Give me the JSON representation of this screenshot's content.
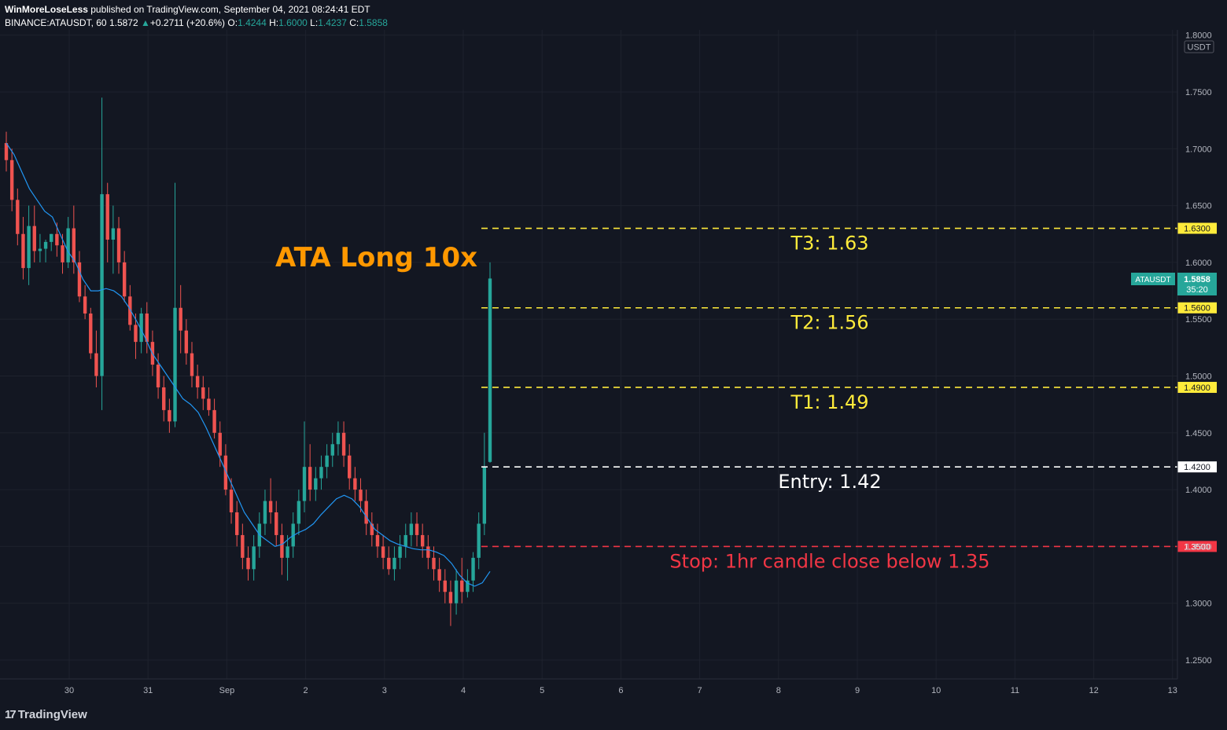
{
  "header": {
    "author": "WinMoreLoseLess",
    "published": " published on TradingView.com, September 04, 2021 08:24:41 EDT",
    "symbol": "BINANCE:ATAUSDT, 60",
    "last": "1.5872",
    "change": "+0.2711 (+20.6%)",
    "o_label": "O:",
    "o": "1.4244",
    "h_label": "H:",
    "h": "1.6000",
    "l_label": "L:",
    "l": "1.4237",
    "c_label": "C:",
    "c": "1.5858"
  },
  "footer": {
    "logo_text": "TradingView"
  },
  "colors": {
    "background": "#131722",
    "up": "#26a69a",
    "down": "#ef5350",
    "ma": "#2196f3",
    "target": "#ffeb3b",
    "entry": "#ffffff",
    "stop": "#f23645",
    "title": "#ff9800"
  },
  "chart_data": {
    "type": "candlestick",
    "title": "ATA Long 10x",
    "currency_label": "USDT",
    "y_ticks": [
      "1.2500",
      "1.3000",
      "1.3500",
      "1.4000",
      "1.4500",
      "1.5000",
      "1.5500",
      "1.6000",
      "1.6500",
      "1.7000",
      "1.7500",
      "1.8000"
    ],
    "x_ticks": [
      "30",
      "31",
      "Sep",
      "2",
      "3",
      "4",
      "5",
      "6",
      "7",
      "8",
      "9",
      "10",
      "11",
      "12",
      "13"
    ],
    "ylim": [
      1.235,
      1.805
    ],
    "price_badge": {
      "label": "ATAUSDT",
      "price": "1.5858",
      "countdown": "35:20"
    },
    "levels": [
      {
        "name": "T3",
        "price": 1.63,
        "price_label": "1.6300",
        "text": "T3: 1.63",
        "color": "#ffeb3b"
      },
      {
        "name": "T2",
        "price": 1.56,
        "price_label": "1.5600",
        "text": "T2: 1.56",
        "color": "#ffeb3b"
      },
      {
        "name": "T1",
        "price": 1.49,
        "price_label": "1.4900",
        "text": "T1: 1.49",
        "color": "#ffeb3b"
      },
      {
        "name": "Entry",
        "price": 1.42,
        "price_label": "1.4200",
        "text": "Entry: 1.42",
        "color": "#ffffff"
      },
      {
        "name": "Stop",
        "price": 1.35,
        "price_label": "1.3500",
        "text": "Stop: 1hr candle close below 1.35",
        "color": "#f23645"
      }
    ],
    "ma_series": [
      1.705,
      1.695,
      1.68,
      1.665,
      1.655,
      1.645,
      1.64,
      1.625,
      1.61,
      1.6,
      1.585,
      1.575,
      1.575,
      1.577,
      1.575,
      1.57,
      1.56,
      1.548,
      1.535,
      1.52,
      1.51,
      1.5,
      1.49,
      1.48,
      1.475,
      1.468,
      1.455,
      1.44,
      1.425,
      1.41,
      1.395,
      1.38,
      1.37,
      1.36,
      1.355,
      1.35,
      1.352,
      1.358,
      1.362,
      1.365,
      1.37,
      1.378,
      1.385,
      1.392,
      1.395,
      1.392,
      1.385,
      1.375,
      1.365,
      1.36,
      1.355,
      1.352,
      1.35,
      1.348,
      1.347,
      1.347,
      1.345,
      1.342,
      1.335,
      1.325,
      1.318,
      1.315,
      1.318,
      1.328
    ],
    "candles": [
      [
        1.705,
        1.715,
        1.69,
        1.68
      ],
      [
        1.69,
        1.7,
        1.655,
        1.645
      ],
      [
        1.655,
        1.665,
        1.625,
        1.615
      ],
      [
        1.625,
        1.64,
        1.595,
        1.585
      ],
      [
        1.595,
        1.65,
        1.632,
        1.58
      ],
      [
        1.632,
        1.65,
        1.61,
        1.6
      ],
      [
        1.61,
        1.625,
        1.612,
        1.6
      ],
      [
        1.612,
        1.62,
        1.618,
        1.6
      ],
      [
        1.618,
        1.625,
        1.625,
        1.61
      ],
      [
        1.625,
        1.635,
        1.615,
        1.605
      ],
      [
        1.615,
        1.625,
        1.6,
        1.59
      ],
      [
        1.6,
        1.64,
        1.63,
        1.595
      ],
      [
        1.63,
        1.65,
        1.6,
        1.59
      ],
      [
        1.6,
        1.61,
        1.57,
        1.565
      ],
      [
        1.57,
        1.58,
        1.555,
        1.55
      ],
      [
        1.555,
        1.56,
        1.52,
        1.515
      ],
      [
        1.52,
        1.54,
        1.5,
        1.49
      ],
      [
        1.5,
        1.745,
        1.66,
        1.47
      ],
      [
        1.66,
        1.67,
        1.62,
        1.6
      ],
      [
        1.62,
        1.65,
        1.63,
        1.59
      ],
      [
        1.63,
        1.64,
        1.6,
        1.59
      ],
      [
        1.6,
        1.61,
        1.57,
        1.565
      ],
      [
        1.57,
        1.58,
        1.545,
        1.54
      ],
      [
        1.545,
        1.555,
        1.53,
        1.515
      ],
      [
        1.53,
        1.56,
        1.555,
        1.52
      ],
      [
        1.555,
        1.565,
        1.53,
        1.52
      ],
      [
        1.53,
        1.54,
        1.51,
        1.5
      ],
      [
        1.51,
        1.52,
        1.49,
        1.48
      ],
      [
        1.49,
        1.5,
        1.47,
        1.46
      ],
      [
        1.47,
        1.48,
        1.46,
        1.45
      ],
      [
        1.46,
        1.67,
        1.56,
        1.455
      ],
      [
        1.56,
        1.58,
        1.54,
        1.52
      ],
      [
        1.54,
        1.55,
        1.52,
        1.51
      ],
      [
        1.52,
        1.53,
        1.5,
        1.49
      ],
      [
        1.5,
        1.51,
        1.49,
        1.48
      ],
      [
        1.49,
        1.5,
        1.48,
        1.47
      ],
      [
        1.48,
        1.49,
        1.47,
        1.465
      ],
      [
        1.47,
        1.48,
        1.45,
        1.445
      ],
      [
        1.45,
        1.46,
        1.43,
        1.42
      ],
      [
        1.43,
        1.44,
        1.4,
        1.395
      ],
      [
        1.4,
        1.41,
        1.38,
        1.37
      ],
      [
        1.38,
        1.39,
        1.36,
        1.35
      ],
      [
        1.36,
        1.37,
        1.34,
        1.33
      ],
      [
        1.34,
        1.35,
        1.33,
        1.32
      ],
      [
        1.33,
        1.36,
        1.35,
        1.32
      ],
      [
        1.35,
        1.38,
        1.37,
        1.34
      ],
      [
        1.37,
        1.4,
        1.39,
        1.36
      ],
      [
        1.39,
        1.41,
        1.38,
        1.37
      ],
      [
        1.38,
        1.39,
        1.36,
        1.35
      ],
      [
        1.36,
        1.37,
        1.34,
        1.325
      ],
      [
        1.34,
        1.36,
        1.35,
        1.32
      ],
      [
        1.35,
        1.38,
        1.37,
        1.34
      ],
      [
        1.37,
        1.4,
        1.39,
        1.36
      ],
      [
        1.39,
        1.46,
        1.42,
        1.38
      ],
      [
        1.42,
        1.44,
        1.4,
        1.39
      ],
      [
        1.4,
        1.42,
        1.41,
        1.39
      ],
      [
        1.41,
        1.43,
        1.42,
        1.4
      ],
      [
        1.42,
        1.44,
        1.43,
        1.41
      ],
      [
        1.43,
        1.45,
        1.44,
        1.42
      ],
      [
        1.44,
        1.46,
        1.45,
        1.43
      ],
      [
        1.45,
        1.46,
        1.43,
        1.42
      ],
      [
        1.43,
        1.44,
        1.41,
        1.4
      ],
      [
        1.41,
        1.42,
        1.4,
        1.39
      ],
      [
        1.4,
        1.41,
        1.39,
        1.38
      ],
      [
        1.39,
        1.4,
        1.37,
        1.36
      ],
      [
        1.37,
        1.38,
        1.36,
        1.35
      ],
      [
        1.36,
        1.37,
        1.35,
        1.34
      ],
      [
        1.35,
        1.36,
        1.34,
        1.33
      ],
      [
        1.34,
        1.35,
        1.33,
        1.325
      ],
      [
        1.33,
        1.35,
        1.34,
        1.32
      ],
      [
        1.34,
        1.36,
        1.35,
        1.33
      ],
      [
        1.35,
        1.37,
        1.36,
        1.34
      ],
      [
        1.36,
        1.38,
        1.37,
        1.35
      ],
      [
        1.37,
        1.38,
        1.36,
        1.35
      ],
      [
        1.36,
        1.37,
        1.35,
        1.34
      ],
      [
        1.35,
        1.36,
        1.34,
        1.33
      ],
      [
        1.34,
        1.35,
        1.33,
        1.32
      ],
      [
        1.33,
        1.34,
        1.32,
        1.31
      ],
      [
        1.32,
        1.33,
        1.31,
        1.3
      ],
      [
        1.31,
        1.32,
        1.3,
        1.28
      ],
      [
        1.3,
        1.33,
        1.32,
        1.29
      ],
      [
        1.32,
        1.34,
        1.31,
        1.3
      ],
      [
        1.31,
        1.33,
        1.32,
        1.305
      ],
      [
        1.32,
        1.345,
        1.34,
        1.31
      ],
      [
        1.34,
        1.38,
        1.37,
        1.33
      ],
      [
        1.37,
        1.45,
        1.42,
        1.36
      ],
      [
        1.4244,
        1.6,
        1.5858,
        1.4237
      ]
    ]
  }
}
